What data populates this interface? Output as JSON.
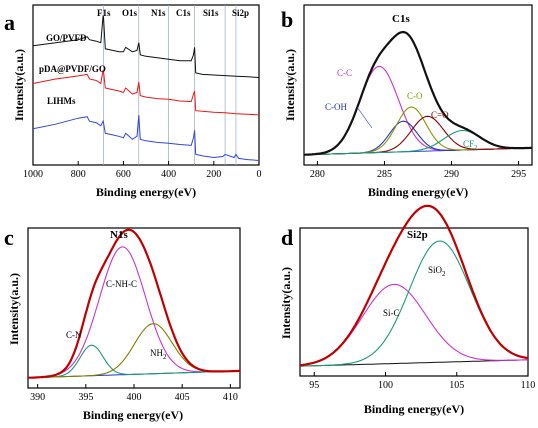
{
  "chart_data": [
    {
      "type": "line",
      "panel": "a",
      "xlabel": "Binding energy(eV)",
      "ylabel": "Intensity(a.u.)",
      "xlim": [
        1000,
        0
      ],
      "x_reversed": true,
      "x_ticks": [
        1000,
        800,
        600,
        400,
        200,
        0
      ],
      "element_lines": [
        {
          "label": "F1s",
          "x": 688
        },
        {
          "label": "O1s",
          "x": 532
        },
        {
          "label": "N1s",
          "x": 400
        },
        {
          "label": "C1s",
          "x": 285
        },
        {
          "label": "Si1s",
          "x": 150
        },
        {
          "label": "Si2p",
          "x": 102
        }
      ],
      "series": [
        {
          "name": "GO/PVFD",
          "color": "#111111",
          "offset": 2.6,
          "x": [
            1000,
            900,
            850,
            800,
            760,
            750,
            720,
            700,
            690,
            688,
            680,
            650,
            620,
            600,
            590,
            560,
            540,
            532,
            525,
            500,
            450,
            400,
            350,
            300,
            290,
            285,
            280,
            250,
            200,
            150,
            100,
            50,
            0
          ],
          "y": [
            1.35,
            1.45,
            1.5,
            1.55,
            1.65,
            1.55,
            1.5,
            1.45,
            2.35,
            2.3,
            1.25,
            1.2,
            1.15,
            1.15,
            1.3,
            1.15,
            1.2,
            1.45,
            1.05,
            1.0,
            0.95,
            0.9,
            0.85,
            0.85,
            1.05,
            1.3,
            0.45,
            0.4,
            0.38,
            0.36,
            0.34,
            0.32,
            0.3
          ]
        },
        {
          "name": "pDA@PVDF/GO",
          "color": "#e8191c",
          "offset": 1.4,
          "x": [
            1000,
            900,
            850,
            800,
            760,
            750,
            720,
            700,
            690,
            688,
            680,
            650,
            620,
            600,
            590,
            560,
            540,
            532,
            525,
            500,
            450,
            400,
            350,
            300,
            290,
            285,
            280,
            250,
            200,
            150,
            100,
            50,
            0
          ],
          "y": [
            1.3,
            1.45,
            1.5,
            1.55,
            1.6,
            1.45,
            1.4,
            1.3,
            1.75,
            1.7,
            1.15,
            1.1,
            1.05,
            1.0,
            1.15,
            0.95,
            1.0,
            1.35,
            0.9,
            0.85,
            0.8,
            0.78,
            0.72,
            0.7,
            0.95,
            1.05,
            0.4,
            0.38,
            0.35,
            0.33,
            0.3,
            0.28,
            0.26
          ]
        },
        {
          "name": "LIHMs",
          "color": "#3344dd",
          "offset": 0.0,
          "x": [
            1000,
            900,
            850,
            800,
            760,
            750,
            720,
            700,
            690,
            688,
            680,
            650,
            620,
            600,
            590,
            560,
            540,
            532,
            525,
            500,
            450,
            400,
            350,
            300,
            290,
            285,
            280,
            250,
            200,
            160,
            150,
            110,
            102,
            90,
            50,
            0
          ],
          "y": [
            1.2,
            1.35,
            1.45,
            1.55,
            1.6,
            1.45,
            1.4,
            1.3,
            1.45,
            1.4,
            1.05,
            1.0,
            0.95,
            0.9,
            1.05,
            0.85,
            0.95,
            1.65,
            0.85,
            0.8,
            0.75,
            0.72,
            0.68,
            0.65,
            0.9,
            1.15,
            0.35,
            0.3,
            0.25,
            0.28,
            0.35,
            0.25,
            0.35,
            0.22,
            0.18,
            0.15
          ]
        }
      ]
    },
    {
      "type": "line",
      "panel": "b",
      "title": "C1s",
      "xlabel": "Binding energy(eV)",
      "ylabel": "Intensity(a.u.)",
      "xlim": [
        279,
        296
      ],
      "ylim": [
        0,
        1.05
      ],
      "x_ticks": [
        280,
        285,
        290,
        295
      ],
      "envelope": {
        "color": "#111111"
      },
      "baseline": {
        "color": "#3344dd"
      },
      "series": [
        {
          "name": "C-C",
          "color": "#cc33cc",
          "center": 284.6,
          "height": 0.62,
          "fwhm": 3.4
        },
        {
          "name": "C-OH",
          "color": "#2233cc",
          "center": 286.4,
          "height": 0.22,
          "fwhm": 2.4
        },
        {
          "name": "C-O",
          "color": "#889900",
          "center": 287.0,
          "height": 0.32,
          "fwhm": 2.6
        },
        {
          "name": "C=O",
          "color": "#8b0000",
          "center": 288.2,
          "height": 0.25,
          "fwhm": 2.8
        },
        {
          "name": "CF2",
          "color": "#1a9a7a",
          "center": 290.8,
          "height": 0.14,
          "fwhm": 3.2
        }
      ]
    },
    {
      "type": "line",
      "panel": "c",
      "title": "N1s",
      "xlabel": "Binding energy(eV)",
      "ylabel": "Intensity(a.u.)",
      "xlim": [
        389,
        411
      ],
      "ylim": [
        0,
        1.05
      ],
      "x_ticks": [
        390,
        395,
        400,
        405,
        410
      ],
      "envelope": {
        "color": "#c00000"
      },
      "baseline": {
        "color": "#2233cc"
      },
      "series": [
        {
          "name": "C-NH-C",
          "color": "#cc33cc",
          "center": 398.8,
          "height": 0.92,
          "fwhm": 5.6
        },
        {
          "name": "C-N",
          "color": "#1a9a7a",
          "center": 395.6,
          "height": 0.22,
          "fwhm": 2.8
        },
        {
          "name": "NH2",
          "color": "#808000",
          "center": 402.0,
          "height": 0.36,
          "fwhm": 4.6
        }
      ]
    },
    {
      "type": "line",
      "panel": "d",
      "title": "Si2p",
      "xlabel": "Binding energy(eV)",
      "ylabel": "Intensity(a.u.)",
      "xlim": [
        94,
        110
      ],
      "ylim": [
        0,
        1.05
      ],
      "x_ticks": [
        95,
        100,
        105,
        110
      ],
      "envelope": {
        "color": "#c00000"
      },
      "baseline": {
        "color": "#111111"
      },
      "series": [
        {
          "name": "Si-C",
          "color": "#cc33cc",
          "center": 100.6,
          "height": 0.62,
          "fwhm": 5.2
        },
        {
          "name": "SiO2",
          "color": "#1a9a7a",
          "center": 103.8,
          "height": 0.95,
          "fwhm": 5.0
        }
      ]
    }
  ],
  "labels": {
    "panel_a": "a",
    "panel_b": "b",
    "panel_c": "c",
    "panel_d": "d",
    "title_b": "C1s",
    "title_c": "N1s",
    "title_d": "Si2p",
    "peak_b_cc": "C-C",
    "peak_b_coh": "C-OH",
    "peak_b_co": "C-O",
    "peak_b_ceo": "C=O",
    "peak_b_cf2_base": "CF",
    "peak_b_cf2_sub": "2",
    "peak_c_cnhc": "C-NH-C",
    "peak_c_cn": "C-N",
    "peak_c_nh2_base": "NH",
    "peak_c_nh2_sub": "2",
    "peak_d_sic": "Si-C",
    "peak_d_sio2_base": "SiO",
    "peak_d_sio2_sub": "2",
    "legend_a_1": "GO/PVFD",
    "legend_a_2": "pDA@PVDF/GO",
    "legend_a_3": "LIHMs",
    "elem_f1s": "F1s",
    "elem_o1s": "O1s",
    "elem_n1s": "N1s",
    "elem_c1s": "C1s",
    "elem_si1s": "Si1s",
    "elem_si2p": "Si2p",
    "xlabel": "Binding energy(eV)",
    "ylabel": "Intensity(a.u.)"
  }
}
